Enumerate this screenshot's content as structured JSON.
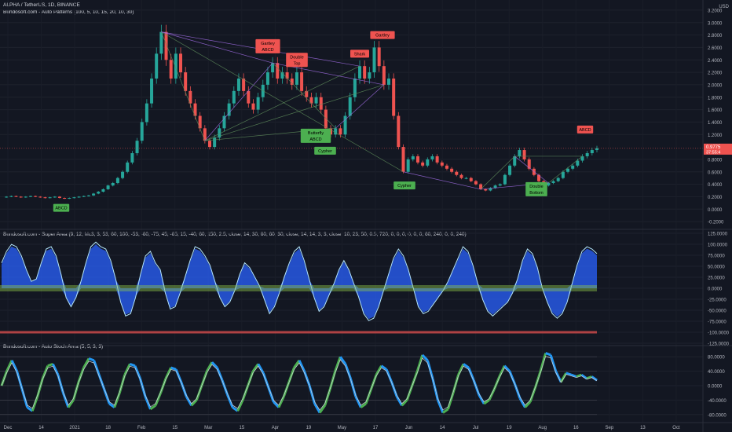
{
  "header": {
    "symbol_line": "ALPHA / TetherUS, 1D, BINANCE",
    "indicator_1": "Bundosoft.com - Auto Patterns (100, 5, 10, 15, 20, 10, 30)",
    "currency": "USD"
  },
  "panes": {
    "super_area_title": "Bundosoft.com - Super Area (9, 12, hlc3, 3, 53, 60, 100, -53, -60, -75, 45, -65, 15, -40, 60, 150, 2.5, close, 14, 30, 60, 60, 30, close, 14, 14, 3, 3, close, 10, 23, 50, 0.5, 720, 0, 0, 0, 0, 0, 0, 60, 240, 0, 0, 240)",
    "stoch_title": "Bundosoft.com - Auto Stoch Area (5, 5, 3, 3)"
  },
  "price_labels": {
    "last_price": "0.9775",
    "countdown": "37:55:4"
  },
  "chart_data": [
    {
      "type": "candlestick",
      "title": "ALPHA / TetherUS, 1D, BINANCE",
      "ylim": [
        -0.3,
        3.3
      ],
      "y_ticks": [
        "3.2000",
        "3.0000",
        "2.8000",
        "2.6000",
        "2.4000",
        "2.2000",
        "2.0000",
        "1.8000",
        "1.6000",
        "1.4000",
        "1.2000",
        "0.8000",
        "0.6000",
        "0.4000",
        "0.2000",
        "0.0000",
        "-0.2000"
      ],
      "y_tick_values": [
        3.2,
        3.0,
        2.8,
        2.6,
        2.4,
        2.2,
        2.0,
        1.8,
        1.6,
        1.4,
        1.2,
        0.8,
        0.6,
        0.4,
        0.2,
        0.0,
        -0.2
      ],
      "x_ticks": [
        "Dec",
        "14",
        "2021",
        "18",
        "Feb",
        "15",
        "Mar",
        "15",
        "Apr",
        "19",
        "May",
        "17",
        "Jun",
        "14",
        "Jul",
        "19",
        "Aug",
        "16",
        "Sep",
        "13",
        "Oct"
      ],
      "price_path": [
        0.19,
        0.2,
        0.21,
        0.2,
        0.19,
        0.2,
        0.21,
        0.2,
        0.19,
        0.18,
        0.19,
        0.2,
        0.18,
        0.17,
        0.18,
        0.19,
        0.2,
        0.21,
        0.22,
        0.25,
        0.28,
        0.32,
        0.38,
        0.42,
        0.5,
        0.6,
        0.75,
        0.9,
        1.1,
        1.4,
        1.7,
        2.1,
        2.5,
        2.85,
        2.4,
        2.1,
        2.5,
        2.2,
        1.9,
        1.7,
        1.5,
        1.3,
        1.1,
        1.0,
        1.15,
        1.3,
        1.5,
        1.7,
        1.9,
        2.1,
        1.9,
        1.7,
        1.6,
        1.8,
        2.0,
        2.2,
        2.35,
        2.1,
        2.2,
        2.1,
        2.0,
        2.2,
        1.9,
        1.8,
        1.7,
        1.8,
        1.6,
        1.3,
        1.2,
        1.3,
        1.2,
        1.5,
        1.8,
        2.1,
        2.3,
        2.1,
        2.2,
        2.6,
        2.3,
        2.0,
        2.1,
        1.5,
        1.0,
        0.6,
        0.8,
        0.85,
        0.75,
        0.7,
        0.8,
        0.85,
        0.75,
        0.7,
        0.65,
        0.6,
        0.55,
        0.5,
        0.5,
        0.45,
        0.4,
        0.32,
        0.3,
        0.34,
        0.38,
        0.4,
        0.55,
        0.7,
        0.85,
        0.95,
        0.8,
        0.65,
        0.55,
        0.45,
        0.38,
        0.42,
        0.45,
        0.5,
        0.6,
        0.65,
        0.7,
        0.78,
        0.85,
        0.9,
        0.95,
        0.98
      ],
      "current_price": 0.9775,
      "pattern_labels": [
        {
          "text": "ABCD",
          "x": "Dec 14",
          "y": 0.02,
          "color": "green"
        },
        {
          "text": "Gartley ABCD",
          "x": "Mar 24",
          "y": 2.62,
          "color": "red"
        },
        {
          "text": "Double Top",
          "x": "Apr 3",
          "y": 2.4,
          "color": "red"
        },
        {
          "text": "Shark",
          "x": "May 2",
          "y": 2.5,
          "color": "red"
        },
        {
          "text": "Gartley",
          "x": "May 13",
          "y": 2.8,
          "color": "red"
        },
        {
          "text": "Butterfly ABCD",
          "x": "Apr 14",
          "y": 1.18,
          "color": "green"
        },
        {
          "text": "Cypher",
          "x": "Apr 18",
          "y": 0.94,
          "color": "green"
        },
        {
          "text": "Cypher",
          "x": "May 20",
          "y": 0.38,
          "color": "green"
        },
        {
          "text": "Double Bottom",
          "x": "Jul 25",
          "y": 0.32,
          "color": "green"
        },
        {
          "text": "ABCD",
          "x": "Aug 11",
          "y": 1.28,
          "color": "red"
        }
      ]
    },
    {
      "type": "area",
      "title": "Bundosoft.com - Super Area",
      "ylim": [
        -125,
        125
      ],
      "y_ticks": [
        "125.0000",
        "100.0000",
        "75.0000",
        "50.0000",
        "25.0000",
        "0.0000",
        "-25.0000",
        "-50.0000",
        "-75.0000",
        "-100.0000",
        "-125.0000"
      ],
      "y_tick_values": [
        125,
        100,
        75,
        50,
        25,
        0,
        -25,
        -50,
        -75,
        -100,
        -125
      ],
      "series_values": [
        55,
        80,
        95,
        90,
        70,
        40,
        15,
        20,
        55,
        85,
        90,
        70,
        30,
        -20,
        -40,
        -20,
        15,
        55,
        90,
        100,
        90,
        85,
        60,
        20,
        -30,
        -60,
        -55,
        -20,
        30,
        70,
        80,
        55,
        40,
        -10,
        -45,
        -40,
        -10,
        25,
        60,
        90,
        85,
        70,
        50,
        15,
        -20,
        -40,
        -30,
        -5,
        30,
        55,
        45,
        25,
        5,
        -25,
        -55,
        -40,
        -10,
        25,
        55,
        80,
        90,
        60,
        20,
        -20,
        -50,
        -40,
        -15,
        10,
        40,
        60,
        40,
        10,
        -20,
        -55,
        -70,
        -65,
        -40,
        -5,
        30,
        65,
        85,
        70,
        40,
        0,
        -40,
        -55,
        -50,
        -35,
        -20,
        -5,
        15,
        40,
        65,
        90,
        80,
        50,
        10,
        -25,
        -50,
        -60,
        -50,
        -40,
        -30,
        -10,
        20,
        60,
        85,
        75,
        45,
        0,
        -30,
        -55,
        -65,
        -55,
        -30,
        10,
        50,
        80,
        90,
        85,
        75
      ]
    },
    {
      "type": "line",
      "title": "Bundosoft.com - Auto Stoch Area (5, 5, 3, 3)",
      "ylim": [
        -100,
        100
      ],
      "y_ticks": [
        "80.0000",
        "40.0000",
        "0.0000",
        "-40.0000",
        "-80.0000"
      ],
      "y_tick_values": [
        80,
        40,
        0,
        -40,
        -80
      ],
      "stoch_values": [
        0,
        40,
        70,
        40,
        -10,
        -60,
        -70,
        -30,
        20,
        55,
        60,
        30,
        -20,
        -60,
        -40,
        10,
        50,
        75,
        70,
        30,
        -10,
        -50,
        -60,
        -20,
        30,
        60,
        55,
        20,
        -30,
        -65,
        -55,
        -20,
        20,
        50,
        45,
        10,
        -30,
        -55,
        -40,
        0,
        40,
        65,
        50,
        15,
        -25,
        -60,
        -70,
        -40,
        0,
        40,
        60,
        35,
        -5,
        -45,
        -60,
        -30,
        10,
        50,
        70,
        40,
        0,
        -50,
        -75,
        -55,
        -10,
        40,
        80,
        60,
        20,
        -30,
        -60,
        -50,
        -10,
        30,
        55,
        45,
        10,
        -30,
        -55,
        -40,
        0,
        40,
        85,
        70,
        20,
        -40,
        -75,
        -65,
        -20,
        30,
        60,
        50,
        15,
        -25,
        -50,
        -40,
        -10,
        25,
        55,
        40,
        5,
        -35,
        -60,
        -45,
        -5,
        40,
        90,
        85,
        40,
        10,
        35,
        30,
        25,
        30,
        20,
        25,
        15
      ]
    }
  ]
}
